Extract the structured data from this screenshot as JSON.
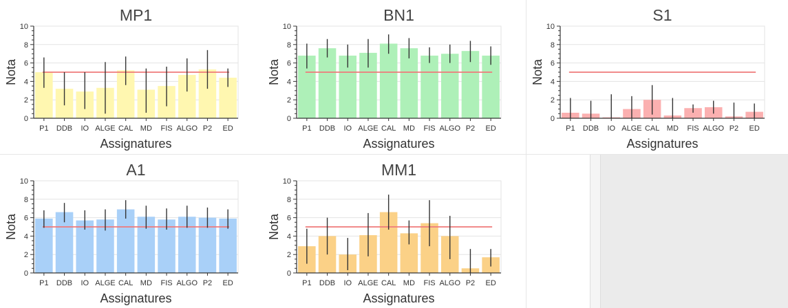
{
  "chart_data": [
    {
      "type": "bar",
      "title": "MP1",
      "xlabel": "Assignatures",
      "ylabel": "Nota",
      "ylim": [
        0,
        10
      ],
      "yticks": [
        "0",
        "2",
        "4",
        "6",
        "8",
        "10"
      ],
      "threshold": 5,
      "bar_color": "#fff7b0",
      "threshold_color": "#ef7a7a",
      "grid": true,
      "categories": [
        "P1",
        "DDB",
        "IO",
        "ALGE",
        "CAL",
        "MD",
        "FIS",
        "ALGO",
        "P2",
        "ED"
      ],
      "values": [
        5.0,
        3.2,
        2.9,
        3.3,
        5.2,
        3.1,
        3.5,
        4.7,
        5.3,
        4.4
      ],
      "errors": [
        [
          3.3,
          6.6
        ],
        [
          1.4,
          5.0
        ],
        [
          1.0,
          5.0
        ],
        [
          0.5,
          6.1
        ],
        [
          3.6,
          6.7
        ],
        [
          0.6,
          5.4
        ],
        [
          1.3,
          5.6
        ],
        [
          2.9,
          6.5
        ],
        [
          3.2,
          7.4
        ],
        [
          3.4,
          5.4
        ]
      ]
    },
    {
      "type": "bar",
      "title": "BN1",
      "xlabel": "Assignatures",
      "ylabel": "Nota",
      "ylim": [
        0,
        10
      ],
      "yticks": [
        "0",
        "2",
        "4",
        "6",
        "8",
        "10"
      ],
      "threshold": 5,
      "bar_color": "#aef0b8",
      "threshold_color": "#ef7a7a",
      "grid": true,
      "categories": [
        "P1",
        "DDB",
        "IO",
        "ALGE",
        "CAL",
        "MD",
        "FIS",
        "ALGO",
        "P2",
        "ED"
      ],
      "values": [
        6.8,
        7.6,
        6.8,
        7.1,
        8.1,
        7.6,
        6.8,
        7.0,
        7.3,
        6.8
      ],
      "errors": [
        [
          5.4,
          8.1
        ],
        [
          6.6,
          8.6
        ],
        [
          5.5,
          8.0
        ],
        [
          5.5,
          8.6
        ],
        [
          7.0,
          9.1
        ],
        [
          6.5,
          8.7
        ],
        [
          6.0,
          7.7
        ],
        [
          6.0,
          8.0
        ],
        [
          6.1,
          8.4
        ],
        [
          5.8,
          7.8
        ]
      ]
    },
    {
      "type": "bar",
      "title": "S1",
      "xlabel": "Assignatures",
      "ylabel": "Nota",
      "ylim": [
        0,
        10
      ],
      "yticks": [
        "0",
        "2",
        "4",
        "6",
        "8",
        "10"
      ],
      "threshold": 5,
      "bar_color": "#fbb0b0",
      "threshold_color": "#ef7a7a",
      "grid": true,
      "categories": [
        "P1",
        "DDB",
        "IO",
        "ALGE",
        "CAL",
        "MD",
        "FIS",
        "ALGO",
        "P2",
        "ED"
      ],
      "values": [
        0.6,
        0.5,
        0.1,
        1.0,
        2.0,
        0.3,
        1.1,
        1.2,
        0.2,
        0.7
      ],
      "errors": [
        [
          0.0,
          2.2
        ],
        [
          0.0,
          1.9
        ],
        [
          0.0,
          2.6
        ],
        [
          0.0,
          2.4
        ],
        [
          0.4,
          3.6
        ],
        [
          0.0,
          2.2
        ],
        [
          0.6,
          1.5
        ],
        [
          0.5,
          1.9
        ],
        [
          0.0,
          1.7
        ],
        [
          0.0,
          1.6
        ]
      ]
    },
    {
      "type": "bar",
      "title": "A1",
      "xlabel": "Assignatures",
      "ylabel": "Nota",
      "ylim": [
        0,
        10
      ],
      "yticks": [
        "0",
        "2",
        "4",
        "6",
        "8",
        "10"
      ],
      "threshold": 5,
      "bar_color": "#a9d0f8",
      "threshold_color": "#ef7a7a",
      "grid": true,
      "categories": [
        "P1",
        "DDB",
        "IO",
        "ALGE",
        "CAL",
        "MD",
        "FIS",
        "ALGO",
        "P2",
        "ED"
      ],
      "values": [
        5.9,
        6.6,
        5.7,
        5.8,
        6.9,
        6.1,
        5.8,
        6.1,
        6.0,
        5.9
      ],
      "errors": [
        [
          4.9,
          6.8
        ],
        [
          5.5,
          7.6
        ],
        [
          4.7,
          6.8
        ],
        [
          4.6,
          6.9
        ],
        [
          5.9,
          7.9
        ],
        [
          4.8,
          7.3
        ],
        [
          4.7,
          7.0
        ],
        [
          4.9,
          7.3
        ],
        [
          4.9,
          7.1
        ],
        [
          4.8,
          6.9
        ]
      ]
    },
    {
      "type": "bar",
      "title": "MM1",
      "xlabel": "Assignatures",
      "ylabel": "Nota",
      "ylim": [
        0,
        10
      ],
      "yticks": [
        "0",
        "2",
        "4",
        "6",
        "8",
        "10"
      ],
      "threshold": 5,
      "bar_color": "#fbd187",
      "threshold_color": "#ef7a7a",
      "grid": true,
      "categories": [
        "P1",
        "DDB",
        "IO",
        "ALGE",
        "CAL",
        "MD",
        "FIS",
        "ALGO",
        "P2",
        "ED"
      ],
      "values": [
        2.9,
        4.0,
        2.0,
        4.1,
        6.6,
        4.3,
        5.4,
        4.0,
        0.5,
        1.7
      ],
      "errors": [
        [
          1.0,
          4.8
        ],
        [
          2.0,
          6.0
        ],
        [
          0.3,
          3.8
        ],
        [
          1.8,
          6.5
        ],
        [
          4.7,
          8.5
        ],
        [
          3.1,
          5.7
        ],
        [
          2.9,
          7.9
        ],
        [
          1.5,
          6.2
        ],
        [
          0.0,
          2.6
        ],
        [
          0.7,
          2.6
        ]
      ]
    }
  ]
}
